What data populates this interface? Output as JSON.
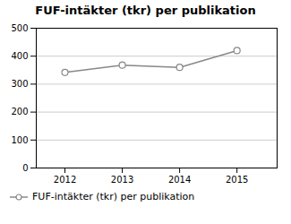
{
  "chart_data": {
    "type": "line",
    "title": "FUF-intäkter (tkr) per publikation",
    "x": [
      2012,
      2013,
      2014,
      2015
    ],
    "series": [
      {
        "name": "FUF-intäkter (tkr) per publikation",
        "color": "#888888",
        "marker": "o",
        "values": [
          342,
          368,
          360,
          420
        ]
      }
    ],
    "xlim": [
      2011.5,
      2015.7
    ],
    "xticks": [
      2012,
      2013,
      2014,
      2015
    ],
    "ylim": [
      0,
      500
    ],
    "yticks": [
      0,
      100,
      200,
      300,
      400,
      500
    ],
    "grid": true,
    "legend": "bottom"
  }
}
